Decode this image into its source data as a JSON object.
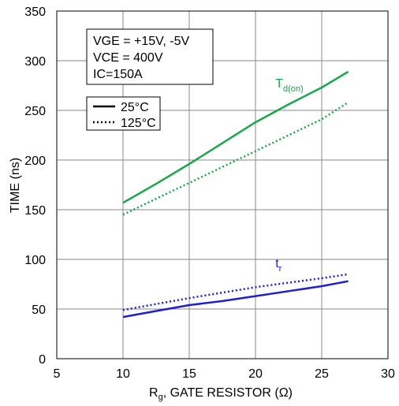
{
  "chart_data": {
    "type": "line",
    "xlabel": {
      "main": "R",
      "sub": "g",
      "rest": ", GATE RESISTOR (Ω)"
    },
    "ylabel": "TIME (ns)",
    "xlim": [
      5,
      30
    ],
    "ylim": [
      0,
      350
    ],
    "xticks": [
      5,
      10,
      15,
      20,
      25,
      30
    ],
    "yticks": [
      0,
      50,
      100,
      150,
      200,
      250,
      300,
      350
    ],
    "grid": true,
    "conditions": [
      "VGE = +15V, -5V",
      "VCE = 400V",
      "IC=150A"
    ],
    "legend": {
      "position": "top-left",
      "entries": [
        {
          "label": "25°C",
          "style": "solid"
        },
        {
          "label": "125°C",
          "style": "dotted"
        }
      ]
    },
    "series": [
      {
        "name": {
          "main": "T",
          "sub": "d(on)"
        },
        "temperature": "25°C",
        "style": "solid",
        "color": "#1aa64b",
        "x": [
          10,
          12.5,
          15,
          17.5,
          20,
          22.5,
          25,
          27
        ],
        "y": [
          157,
          176,
          196,
          217,
          238,
          256,
          273,
          289
        ]
      },
      {
        "name": {
          "main": "T",
          "sub": "d(on)"
        },
        "temperature": "125°C",
        "style": "dotted",
        "color": "#1aa64b",
        "x": [
          10,
          15,
          20,
          25,
          27
        ],
        "y": [
          145,
          177,
          209,
          241,
          258
        ]
      },
      {
        "name": {
          "main": "t",
          "sub": "r"
        },
        "temperature": "25°C",
        "style": "solid",
        "color": "#1f1fd1",
        "x": [
          10,
          12.5,
          15,
          17.5,
          20,
          22.5,
          25,
          27
        ],
        "y": [
          42,
          48,
          54,
          58,
          63,
          68,
          73,
          78
        ]
      },
      {
        "name": {
          "main": "t",
          "sub": "r"
        },
        "temperature": "125°C",
        "style": "dotted",
        "color": "#1f1fd1",
        "x": [
          10,
          15,
          20,
          25,
          27
        ],
        "y": [
          49,
          61,
          72,
          81,
          85
        ]
      }
    ],
    "series_labels": [
      {
        "main": "T",
        "sub": "d(on)",
        "color": "#1aa64b",
        "x": 21.5,
        "y": 273
      },
      {
        "main": "t",
        "sub": "r",
        "color": "#1f1fd1",
        "x": 21.5,
        "y": 92
      }
    ]
  }
}
